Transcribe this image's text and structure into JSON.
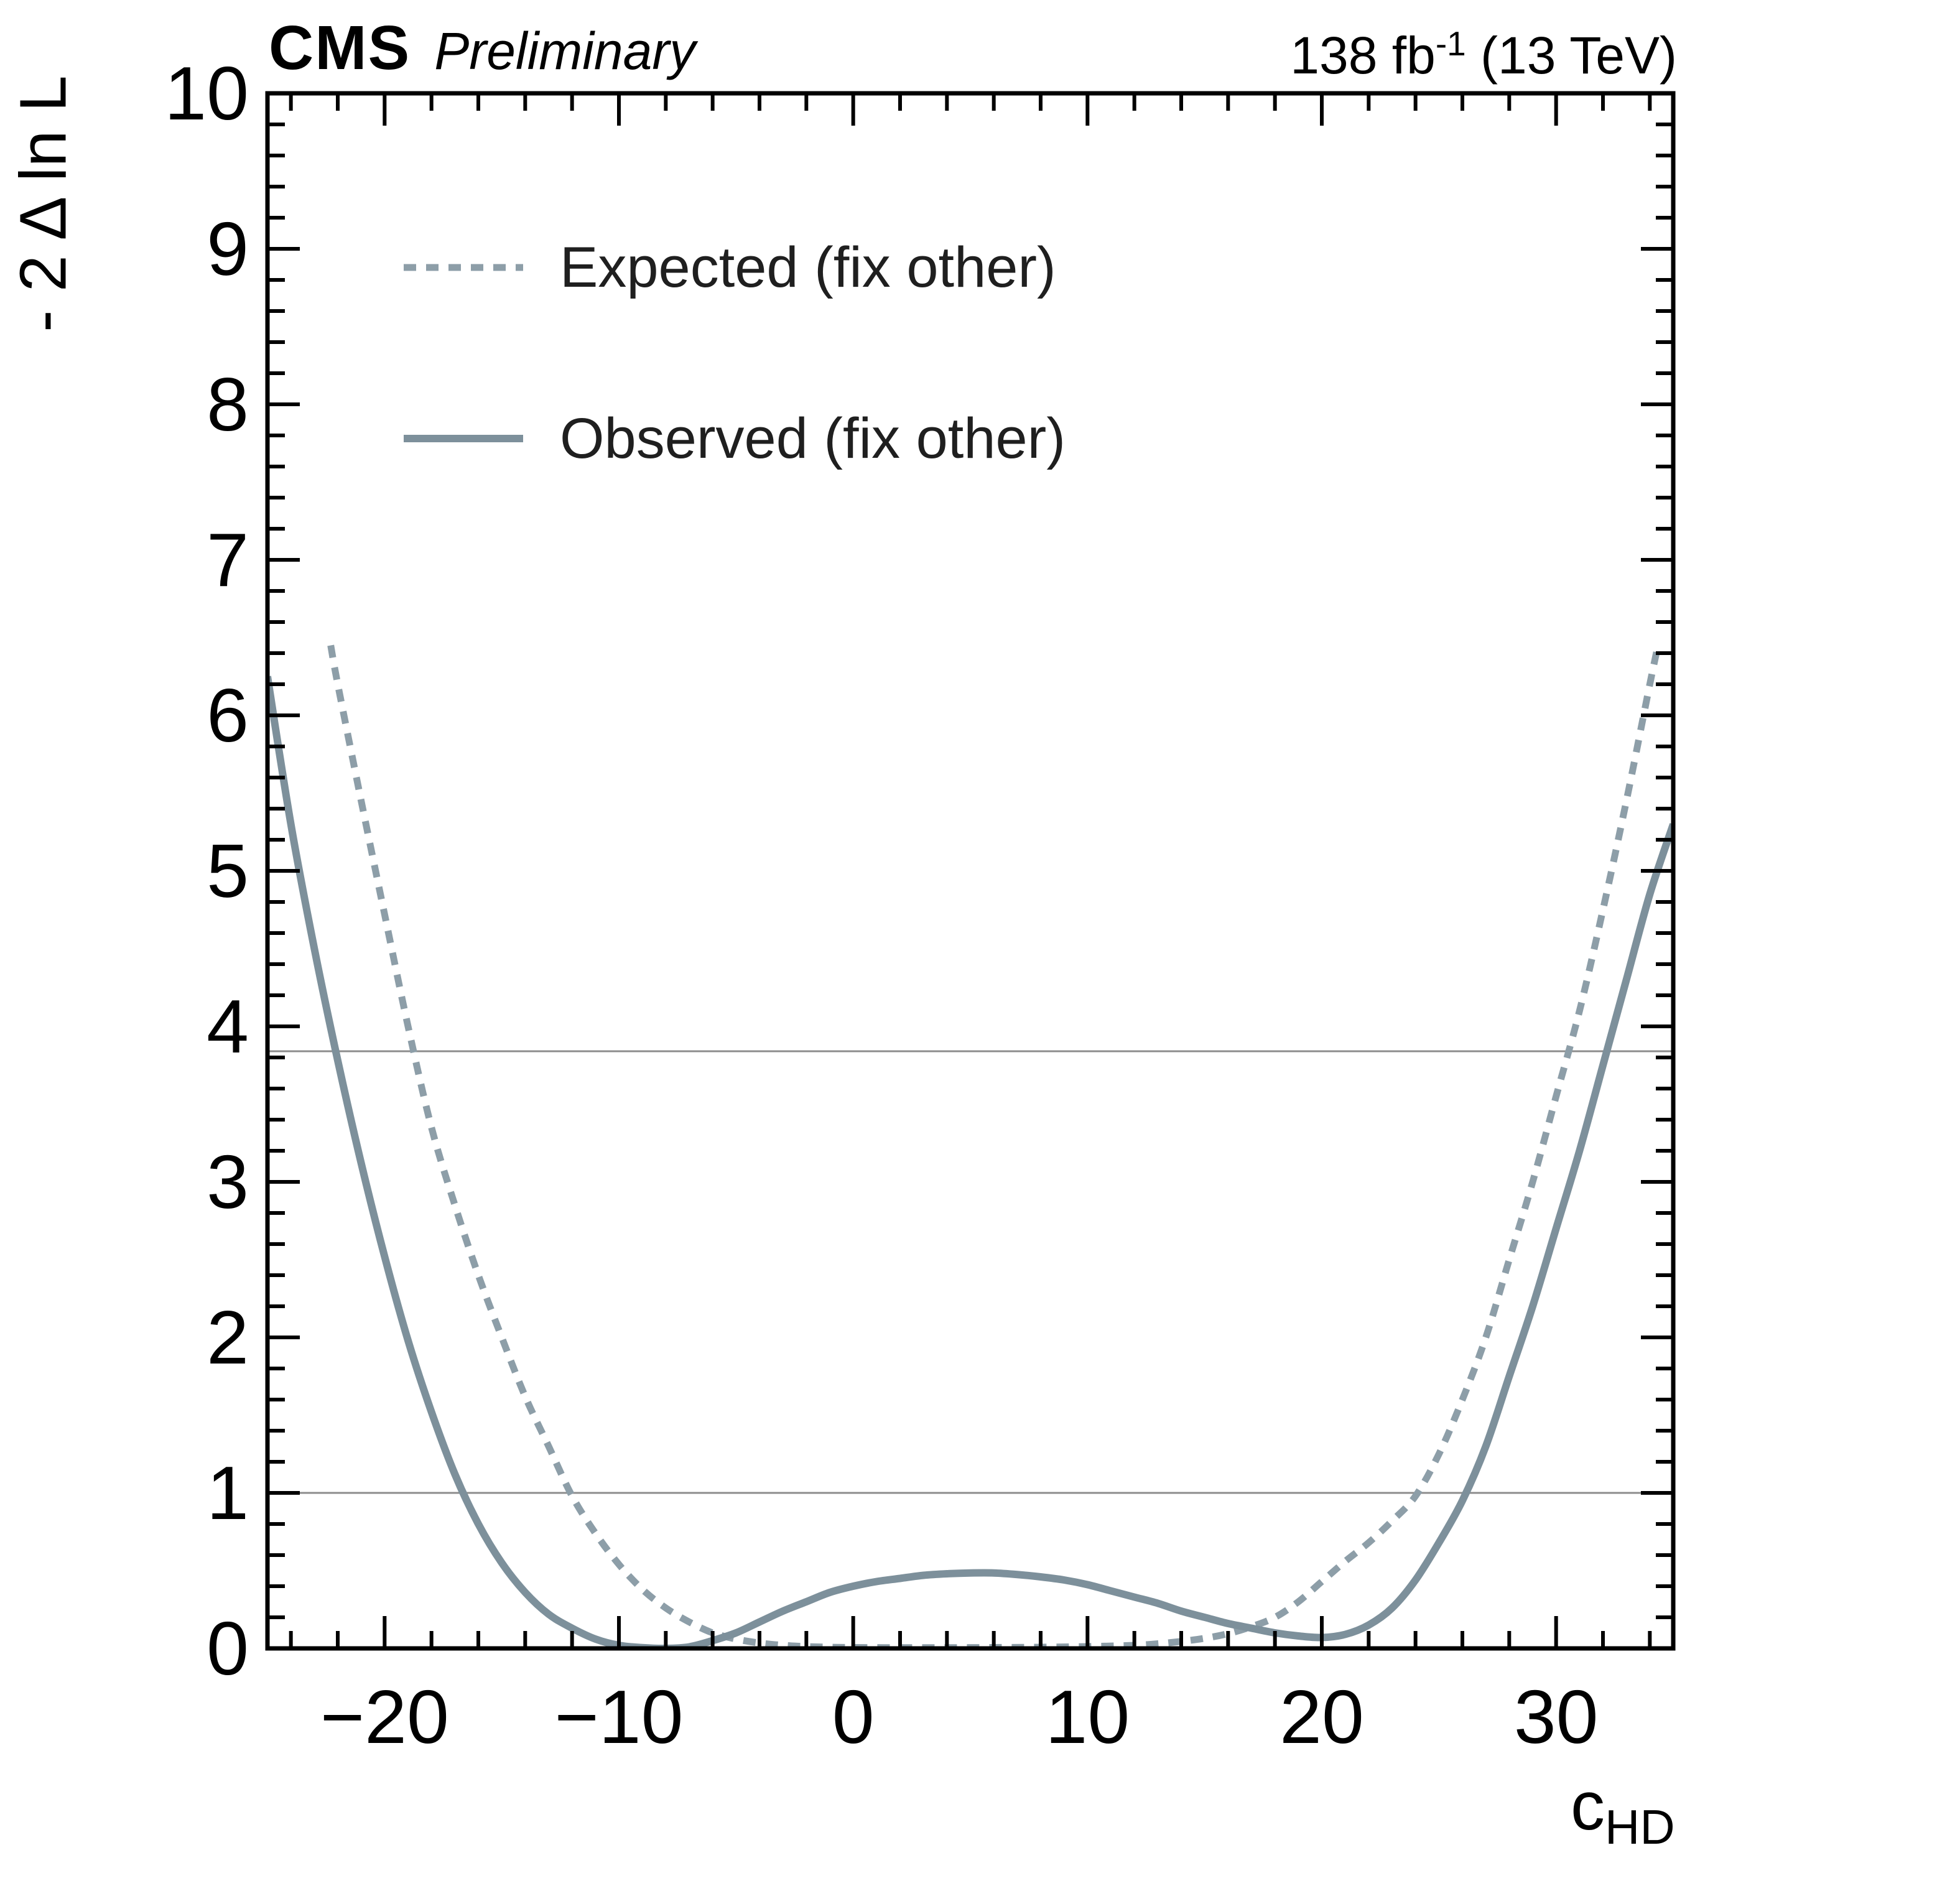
{
  "header": {
    "experiment": "CMS",
    "status": "Preliminary",
    "lumi_prefix": "138 fb",
    "lumi_sup": "-1",
    "lumi_suffix": " (13 TeV)"
  },
  "chart_data": {
    "type": "line",
    "title": "",
    "xlabel": "c_HD",
    "xlabel_main": "c",
    "xlabel_sub": "HD",
    "ylabel": "- 2 Δ ln L",
    "xlim": [
      -25,
      35
    ],
    "ylim": [
      0,
      10
    ],
    "xticks": [
      -20,
      -10,
      0,
      10,
      20,
      30
    ],
    "yticks": [
      0,
      1,
      2,
      3,
      4,
      5,
      6,
      7,
      8,
      9,
      10
    ],
    "x_minor_step": 2,
    "y_minor_step": 0.2,
    "grid": false,
    "legend_position": "upper-left-inside",
    "reference_lines": [
      1.0,
      3.84
    ],
    "reference_line_color": "#8c8c8c",
    "frame_color": "#000000",
    "series": [
      {
        "name": "Expected (fix other)",
        "style": "dashed",
        "color": "#8d9ea8",
        "width": 11,
        "dash": "20 16",
        "points": [
          [
            -22.3,
            6.45
          ],
          [
            -22,
            6.2
          ],
          [
            -21,
            5.45
          ],
          [
            -20,
            4.72
          ],
          [
            -19,
            4.0
          ],
          [
            -18,
            3.35
          ],
          [
            -17,
            2.85
          ],
          [
            -16,
            2.4
          ],
          [
            -15,
            2.0
          ],
          [
            -14,
            1.62
          ],
          [
            -13,
            1.3
          ],
          [
            -12,
            0.98
          ],
          [
            -11,
            0.74
          ],
          [
            -10,
            0.54
          ],
          [
            -9,
            0.38
          ],
          [
            -8,
            0.26
          ],
          [
            -7,
            0.17
          ],
          [
            -6,
            0.1
          ],
          [
            -5,
            0.06
          ],
          [
            -4,
            0.035
          ],
          [
            -3,
            0.02
          ],
          [
            -2,
            0.012
          ],
          [
            -1,
            0.008
          ],
          [
            0,
            0.006
          ],
          [
            2,
            0.005
          ],
          [
            4,
            0.005
          ],
          [
            6,
            0.006
          ],
          [
            8,
            0.008
          ],
          [
            10,
            0.012
          ],
          [
            12,
            0.02
          ],
          [
            13,
            0.03
          ],
          [
            14,
            0.045
          ],
          [
            15,
            0.065
          ],
          [
            16,
            0.095
          ],
          [
            17,
            0.14
          ],
          [
            18,
            0.2
          ],
          [
            19,
            0.3
          ],
          [
            20,
            0.43
          ],
          [
            21,
            0.56
          ],
          [
            22,
            0.68
          ],
          [
            23,
            0.82
          ],
          [
            24,
            0.98
          ],
          [
            25,
            1.25
          ],
          [
            26,
            1.6
          ],
          [
            27,
            2.0
          ],
          [
            28,
            2.5
          ],
          [
            29,
            3.0
          ],
          [
            30,
            3.55
          ],
          [
            31,
            4.1
          ],
          [
            32,
            4.75
          ],
          [
            33,
            5.45
          ],
          [
            34,
            6.2
          ],
          [
            34.35,
            6.45
          ]
        ]
      },
      {
        "name": "Observed (fix other)",
        "style": "solid",
        "color": "#7d909b",
        "width": 12,
        "dash": "",
        "points": [
          [
            -25,
            6.25
          ],
          [
            -24,
            5.3
          ],
          [
            -23,
            4.5
          ],
          [
            -22,
            3.78
          ],
          [
            -21,
            3.12
          ],
          [
            -20,
            2.52
          ],
          [
            -19,
            1.98
          ],
          [
            -18,
            1.52
          ],
          [
            -17,
            1.12
          ],
          [
            -16,
            0.8
          ],
          [
            -15,
            0.55
          ],
          [
            -14,
            0.36
          ],
          [
            -13,
            0.22
          ],
          [
            -12,
            0.13
          ],
          [
            -11,
            0.06
          ],
          [
            -10,
            0.02
          ],
          [
            -9,
            0.005
          ],
          [
            -8,
            0
          ],
          [
            -7,
            0.01
          ],
          [
            -6,
            0.05
          ],
          [
            -5,
            0.1
          ],
          [
            -4,
            0.17
          ],
          [
            -3,
            0.24
          ],
          [
            -2,
            0.3
          ],
          [
            -1,
            0.36
          ],
          [
            0,
            0.4
          ],
          [
            1,
            0.43
          ],
          [
            2,
            0.45
          ],
          [
            3,
            0.47
          ],
          [
            4,
            0.48
          ],
          [
            5,
            0.485
          ],
          [
            6,
            0.485
          ],
          [
            7,
            0.475
          ],
          [
            8,
            0.46
          ],
          [
            9,
            0.44
          ],
          [
            10,
            0.41
          ],
          [
            11,
            0.37
          ],
          [
            12,
            0.33
          ],
          [
            13,
            0.29
          ],
          [
            14,
            0.24
          ],
          [
            15,
            0.2
          ],
          [
            16,
            0.16
          ],
          [
            17,
            0.13
          ],
          [
            18,
            0.1
          ],
          [
            19,
            0.08
          ],
          [
            20,
            0.07
          ],
          [
            21,
            0.09
          ],
          [
            22,
            0.15
          ],
          [
            23,
            0.26
          ],
          [
            24,
            0.44
          ],
          [
            25,
            0.68
          ],
          [
            26,
            0.95
          ],
          [
            27,
            1.3
          ],
          [
            28,
            1.75
          ],
          [
            29,
            2.2
          ],
          [
            30,
            2.7
          ],
          [
            31,
            3.2
          ],
          [
            32,
            3.75
          ],
          [
            33,
            4.3
          ],
          [
            34,
            4.85
          ],
          [
            35,
            5.3
          ]
        ]
      }
    ]
  }
}
